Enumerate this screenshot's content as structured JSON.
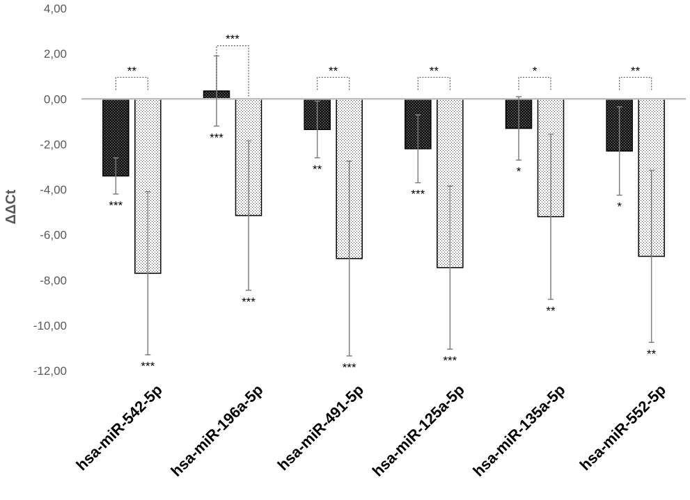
{
  "chart_data": {
    "type": "bar",
    "ylabel": "ΔΔCt",
    "ylim": [
      -12,
      4
    ],
    "yticks": [
      4,
      2,
      0,
      -2,
      -4,
      -6,
      -8,
      -10,
      -12
    ],
    "ytick_labels": [
      "4,00",
      "2,00",
      "0,00",
      "-2,00",
      "-4,00",
      "-6,00",
      "-8,00",
      "-10,00",
      "-12,00"
    ],
    "categories": [
      "hsa-miR-542-5p",
      "hsa-miR-196a-5p",
      "hsa-miR-491-5p",
      "hsa-miR-125a-5p",
      "hsa-miR-135a-5p",
      "hsa-miR-552-5p"
    ],
    "series": [
      {
        "pattern": "dense-dark",
        "values": [
          -3.4,
          0.35,
          -1.35,
          -2.2,
          -1.3,
          -2.3
        ],
        "error": [
          0.8,
          1.55,
          1.25,
          1.5,
          1.4,
          1.95
        ],
        "significance": [
          "***",
          "***",
          "**",
          "***",
          "*",
          "*"
        ]
      },
      {
        "pattern": "sparse-light",
        "values": [
          -7.7,
          -5.15,
          -7.05,
          -7.45,
          -5.2,
          -6.95
        ],
        "error": [
          3.6,
          3.3,
          4.3,
          3.6,
          3.65,
          3.8
        ],
        "significance": [
          "***",
          "***",
          "***",
          "***",
          "**",
          "**"
        ]
      }
    ],
    "comparison_brackets": [
      "**",
      "***",
      "**",
      "**",
      "*",
      "**"
    ],
    "grid": false,
    "legend": "none"
  }
}
